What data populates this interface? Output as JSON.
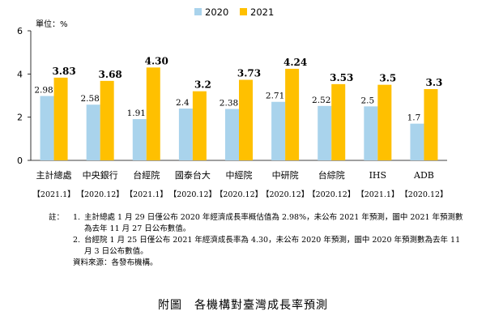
{
  "chart_data": {
    "type": "bar",
    "unit_label": "單位：%",
    "ylim": [
      0,
      6
    ],
    "yticks": [
      "0",
      "2",
      "4",
      "6"
    ],
    "legend_position": "top-center",
    "categories": [
      "主計總處",
      "中央銀行",
      "台經院",
      "國泰台大",
      "中經院",
      "中研院",
      "台綜院",
      "IHS",
      "ADB"
    ],
    "category_dates": [
      "【2021.1】",
      "【2020.12】",
      "【2021.1】",
      "【2020.12】",
      "【2020.12】",
      "【2020.12】",
      "【2020.12】",
      "【2021.1】",
      "【2020.12】"
    ],
    "series": [
      {
        "name": "2020",
        "color": "#a9d3ec",
        "values": [
          2.98,
          2.58,
          1.91,
          2.4,
          2.38,
          2.71,
          2.52,
          2.5,
          1.7
        ],
        "labels": [
          "2.98",
          "2.58",
          "1.91",
          "2.4",
          "2.38",
          "2.71",
          "2.52",
          "2.5",
          "1.7"
        ]
      },
      {
        "name": "2021",
        "color": "#ffc000",
        "values": [
          3.83,
          3.68,
          4.3,
          3.2,
          3.73,
          4.24,
          3.53,
          3.5,
          3.3
        ],
        "labels": [
          "3.83",
          "3.68",
          "4.30",
          "3.2",
          "3.73",
          "4.24",
          "3.53",
          "3.5",
          "3.3"
        ]
      }
    ]
  },
  "notes": {
    "label": "註：",
    "items": [
      {
        "num": "1.",
        "text": "主計總處 1 月 29 日僅公布 2020 年經濟成長率概估值為 2.98%，未公布 2021 年預測，圖中 2021 年預測數為去年 11 月 27 日公布數值。"
      },
      {
        "num": "2.",
        "text": "台經院 1 月 25 日僅公布 2021 年經濟成長率為 4.30，未公布 2020 年預測，圖中 2020 年預測數為去年 11 月 3 日公布數值。"
      }
    ],
    "source": "資料來源：各發布機構。"
  },
  "caption": "附圖　各機構對臺灣成長率預測"
}
